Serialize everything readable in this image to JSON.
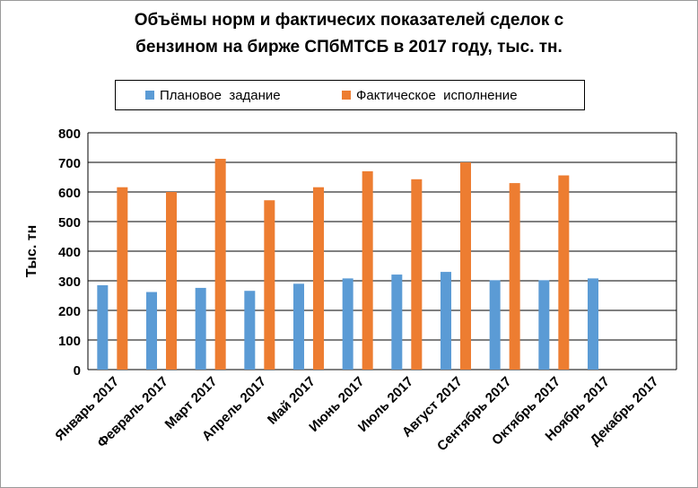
{
  "chart_data": {
    "type": "bar",
    "title_lines": [
      "Объёмы норм и фактичесих показателей сделок с",
      "бензином на бирже СПбМТСБ в 2017 году, тыс. тн."
    ],
    "ylabel": "Тыс. тн",
    "xlabel": "",
    "ylim": [
      0,
      800
    ],
    "yticks": [
      0,
      100,
      200,
      300,
      400,
      500,
      600,
      700,
      800
    ],
    "grid": true,
    "legend_position": "top",
    "categories": [
      "Январь 2017",
      "Февраль 2017",
      "Март 2017",
      "Апрель 2017",
      "Май 2017",
      "Июнь 2017",
      "Июль 2017",
      "Август 2017",
      "Сентябрь 2017",
      "Октябрь 2017",
      "Ноябрь 2017",
      "Декабрь 2017"
    ],
    "series": [
      {
        "name": "Плановое  задание",
        "color": "#5b9bd5",
        "values": [
          285,
          262,
          276,
          266,
          290,
          308,
          321,
          330,
          302,
          302,
          308,
          null
        ]
      },
      {
        "name": "Фактическое  исполнение",
        "color": "#ed7d31",
        "values": [
          616,
          600,
          712,
          572,
          616,
          670,
          643,
          700,
          630,
          656,
          null,
          null
        ]
      }
    ]
  }
}
